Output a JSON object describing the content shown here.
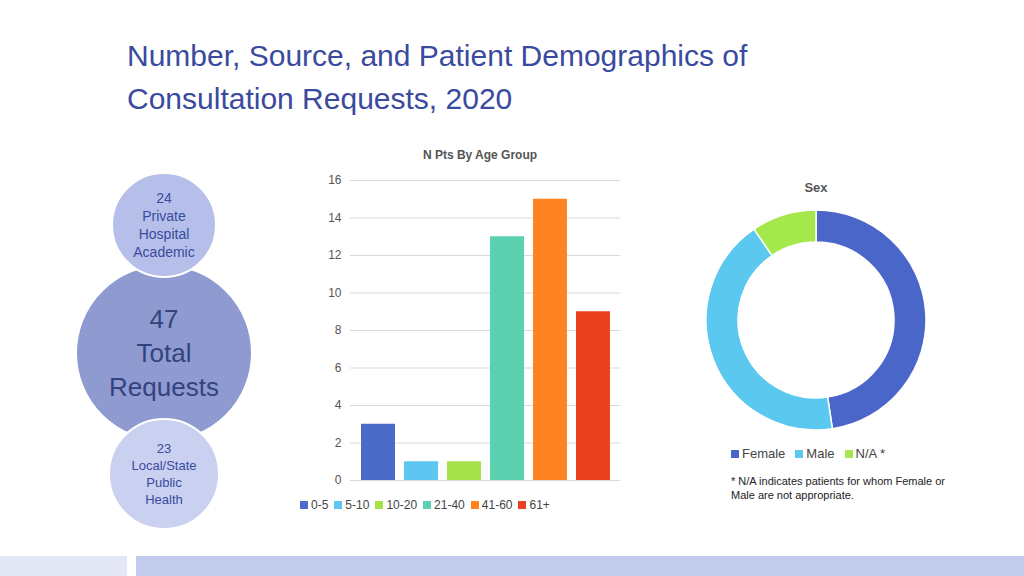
{
  "title": "Number, Source, and Patient Demographics of Consultation Requests, 2020",
  "summary": {
    "total": {
      "value": 47,
      "label": "Total Requests"
    },
    "sources": [
      {
        "value": 24,
        "label": "Private Hospital Academic"
      },
      {
        "value": 23,
        "label": "Local/State Public Health"
      }
    ]
  },
  "chart_data": [
    {
      "type": "bar",
      "title": "N Pts By Age Group",
      "categories": [
        "0-5",
        "5-10",
        "10-20",
        "21-40",
        "41-60",
        "61+"
      ],
      "values": [
        3,
        1,
        1,
        13,
        15,
        9
      ],
      "colors": [
        "#4a6cc8",
        "#5ec6f0",
        "#a6e04a",
        "#5bd1b0",
        "#ff8320",
        "#ea4220"
      ],
      "ylim": [
        0,
        16
      ],
      "yticks": [
        0,
        2,
        4,
        6,
        8,
        10,
        12,
        14,
        16
      ],
      "grid": true,
      "legend": "bottom",
      "tick_labels": "y"
    },
    {
      "type": "donut",
      "title": "Sex",
      "categories": [
        "Female",
        "Male",
        "N/A *"
      ],
      "values": [
        20,
        18,
        4
      ],
      "colors": [
        "#4a66c8",
        "#5bc8ef",
        "#a4e84c"
      ],
      "legend": "bottom",
      "annotations": [
        "* N/A indicates patients for whom Female or Male are not appropriate."
      ]
    }
  ]
}
